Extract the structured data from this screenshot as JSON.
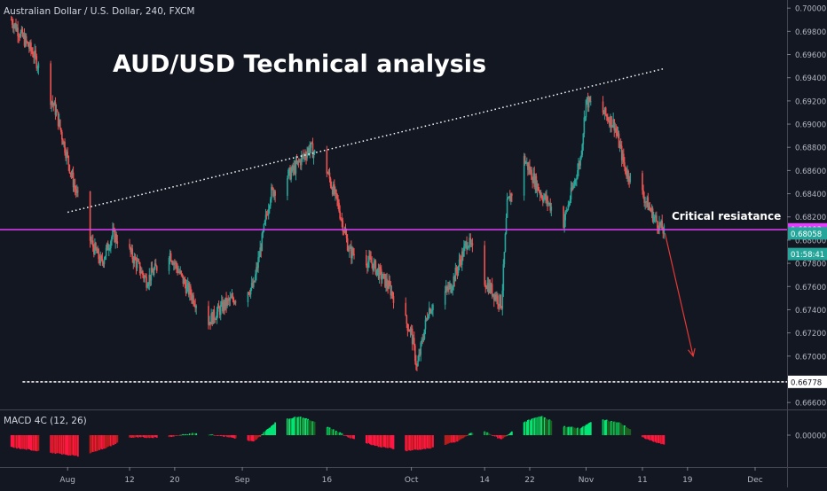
{
  "header": {
    "symbol_line": "Australian Dollar / U.S. Dollar, 240, FXCM"
  },
  "annotations": {
    "title": "AUD/USD Technical analysis",
    "critical_label": "Critical resiatance"
  },
  "colors": {
    "background": "#131722",
    "bull": "#26a69a",
    "bear": "#ef5350",
    "resistance_line": "#e040fb",
    "support_line": "#ffffff",
    "arrow": "#e53935",
    "macd_positive": "#00e676",
    "macd_negative": "#ff1744",
    "price_tag_current": "#26a69a"
  },
  "chart_data": [
    {
      "type": "candlestick",
      "title": "",
      "xlabel": "",
      "ylabel": "",
      "y_ticks": [
        "0.70000",
        "0.69800",
        "0.69600",
        "0.69400",
        "0.69200",
        "0.69000",
        "0.68800",
        "0.68600",
        "0.68400",
        "0.68200",
        "0.68000",
        "0.67800",
        "0.67600",
        "0.67400",
        "0.67200",
        "0.67000",
        "0.66800",
        "0.66600"
      ],
      "ylim": [
        0.6654,
        0.7007
      ],
      "x_ticks": [
        "Aug",
        "12",
        "20",
        "Sep",
        "16",
        "Oct",
        "14",
        "22",
        "Nov",
        "11",
        "19",
        "Dec"
      ],
      "x_tick_dates": [
        "2019-08-01",
        "2019-08-12",
        "2019-08-20",
        "2019-09-01",
        "2019-09-16",
        "2019-10-01",
        "2019-10-14",
        "2019-10-22",
        "2019-11-01",
        "2019-11-11",
        "2019-11-19",
        "2019-12-01"
      ],
      "price_path": {
        "dates": [
          "2019-07-22",
          "2019-07-26",
          "2019-07-30",
          "2019-08-02",
          "2019-08-05",
          "2019-08-07",
          "2019-08-09",
          "2019-08-12",
          "2019-08-15",
          "2019-08-19",
          "2019-08-22",
          "2019-08-26",
          "2019-08-29",
          "2019-09-03",
          "2019-09-06",
          "2019-09-10",
          "2019-09-13",
          "2019-09-16",
          "2019-09-18",
          "2019-09-20",
          "2019-09-24",
          "2019-09-27",
          "2019-10-01",
          "2019-10-02",
          "2019-10-04",
          "2019-10-08",
          "2019-10-11",
          "2019-10-14",
          "2019-10-17",
          "2019-10-18",
          "2019-10-21",
          "2019-10-24",
          "2019-10-28",
          "2019-10-31",
          "2019-11-01",
          "2019-11-04",
          "2019-11-06",
          "2019-11-08",
          "2019-11-11",
          "2019-11-13",
          "2019-11-15"
        ],
        "values": [
          0.699,
          0.696,
          0.691,
          0.685,
          0.68,
          0.678,
          0.6805,
          0.679,
          0.6765,
          0.679,
          0.676,
          0.673,
          0.6745,
          0.676,
          0.684,
          0.686,
          0.688,
          0.686,
          0.683,
          0.679,
          0.678,
          0.676,
          0.672,
          0.669,
          0.674,
          0.676,
          0.68,
          0.6765,
          0.6745,
          0.683,
          0.687,
          0.684,
          0.6815,
          0.687,
          0.692,
          0.691,
          0.69,
          0.686,
          0.684,
          0.682,
          0.6806
        ]
      },
      "series": [
        {
          "name": "",
          "dates": [
            "2019-08-08",
            "2019-12-01"
          ],
          "values": [
            0.6809,
            0.6809
          ],
          "style": "solid"
        },
        {
          "name": "",
          "dates": [
            "2019-08-08",
            "2019-12-01"
          ],
          "values": [
            0.66778,
            0.66778
          ],
          "style": "dashed"
        },
        {
          "name": "",
          "dates": [
            "2019-08-01",
            "2019-11-15"
          ],
          "values": [
            0.6824,
            0.6948
          ],
          "style": "dotted"
        },
        {
          "name": "",
          "dates": [
            "2019-11-15",
            "2019-11-20"
          ],
          "values": [
            0.6806,
            0.67
          ],
          "style": "arrow"
        }
      ],
      "price_labels": [
        {
          "text": "0.68093",
          "value": 0.68093,
          "kind": "resistance"
        },
        {
          "text": "0.68058",
          "value": 0.68058,
          "kind": "current"
        },
        {
          "text": "01:58:41",
          "value": 0.6788,
          "kind": "countdown"
        },
        {
          "text": "0.66778",
          "value": 0.66778,
          "kind": "support"
        }
      ]
    },
    {
      "type": "bar",
      "title": "MACD 4C (12, 26)",
      "y_ticks": [
        "0.00000"
      ],
      "ylim": [
        -1,
        1
      ],
      "hist_path": {
        "dates": [
          "2019-07-22",
          "2019-07-28",
          "2019-08-03",
          "2019-08-08",
          "2019-08-12",
          "2019-08-18",
          "2019-08-24",
          "2019-08-29",
          "2019-09-03",
          "2019-09-07",
          "2019-09-11",
          "2019-09-15",
          "2019-09-20",
          "2019-09-25",
          "2019-09-30",
          "2019-10-04",
          "2019-10-09",
          "2019-10-13",
          "2019-10-17",
          "2019-10-21",
          "2019-10-24",
          "2019-10-28",
          "2019-10-31",
          "2019-11-03",
          "2019-11-07",
          "2019-11-11",
          "2019-11-15"
        ],
        "values": [
          -0.55,
          -0.75,
          -0.95,
          -0.55,
          -0.1,
          -0.1,
          0.1,
          -0.05,
          -0.3,
          0.6,
          0.85,
          0.5,
          -0.1,
          -0.5,
          -0.7,
          -0.6,
          -0.3,
          0.3,
          -0.2,
          0.6,
          0.85,
          0.4,
          0.3,
          0.75,
          0.55,
          -0.1,
          -0.45
        ]
      }
    }
  ]
}
